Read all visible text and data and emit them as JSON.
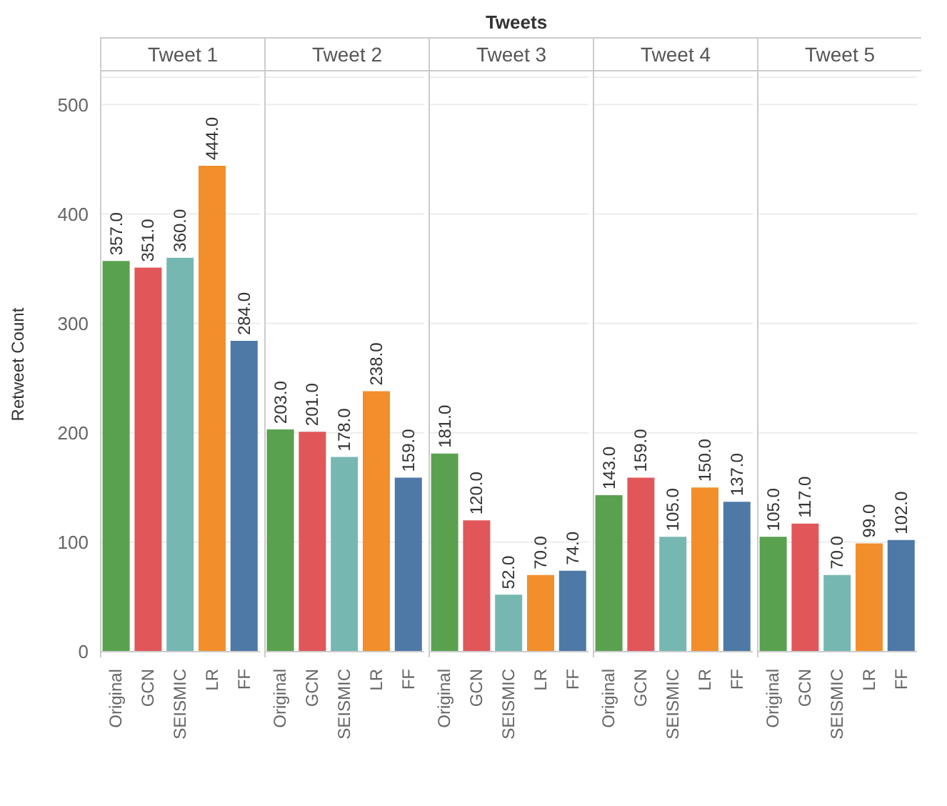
{
  "chart_data": [
    {
      "type": "bar",
      "title": "Tweet 1",
      "ylabel": "Retweet Count",
      "annotations": [
        "Tweets"
      ],
      "categories": [
        "Original",
        "GCN",
        "SEISMIC",
        "LR",
        "FF"
      ],
      "values": [
        357,
        351,
        360,
        444,
        284
      ],
      "value_labels": [
        "357.0",
        "351.0",
        "360.0",
        "444.0",
        "284.0"
      ],
      "colors": [
        "#59a14f",
        "#e15759",
        "#76b7b2",
        "#f28e2b",
        "#4e79a7"
      ],
      "ylim": [
        0,
        525
      ],
      "yticks": [
        0,
        100,
        200,
        300,
        400,
        500
      ],
      "grid": "y"
    },
    {
      "type": "bar",
      "title": "Tweet 2",
      "categories": [
        "Original",
        "GCN",
        "SEISMIC",
        "LR",
        "FF"
      ],
      "values": [
        203,
        201,
        178,
        238,
        159
      ],
      "value_labels": [
        "203.0",
        "201.0",
        "178.0",
        "238.0",
        "159.0"
      ],
      "colors": [
        "#59a14f",
        "#e15759",
        "#76b7b2",
        "#f28e2b",
        "#4e79a7"
      ],
      "ylim": [
        0,
        525
      ],
      "yticks": [
        0,
        100,
        200,
        300,
        400,
        500
      ],
      "grid": "y",
      "tick_labels": "x"
    },
    {
      "type": "bar",
      "title": "Tweet 3",
      "categories": [
        "Original",
        "GCN",
        "SEISMIC",
        "LR",
        "FF"
      ],
      "values": [
        181,
        120,
        52,
        70,
        74
      ],
      "value_labels": [
        "181.0",
        "120.0",
        "52.0",
        "70.0",
        "74.0"
      ],
      "colors": [
        "#59a14f",
        "#e15759",
        "#76b7b2",
        "#f28e2b",
        "#4e79a7"
      ],
      "ylim": [
        0,
        525
      ],
      "yticks": [
        0,
        100,
        200,
        300,
        400,
        500
      ],
      "grid": "y",
      "tick_labels": "x"
    },
    {
      "type": "bar",
      "title": "Tweet 4",
      "categories": [
        "Original",
        "GCN",
        "SEISMIC",
        "LR",
        "FF"
      ],
      "values": [
        143,
        159,
        105,
        150,
        137
      ],
      "value_labels": [
        "143.0",
        "159.0",
        "105.0",
        "150.0",
        "137.0"
      ],
      "colors": [
        "#59a14f",
        "#e15759",
        "#76b7b2",
        "#f28e2b",
        "#4e79a7"
      ],
      "ylim": [
        0,
        525
      ],
      "yticks": [
        0,
        100,
        200,
        300,
        400,
        500
      ],
      "grid": "y",
      "tick_labels": "x"
    },
    {
      "type": "bar",
      "title": "Tweet 5",
      "categories": [
        "Original",
        "GCN",
        "SEISMIC",
        "LR",
        "FF"
      ],
      "values": [
        105,
        117,
        70,
        99,
        102
      ],
      "value_labels": [
        "105.0",
        "117.0",
        "70.0",
        "99.0",
        "102.0"
      ],
      "colors": [
        "#59a14f",
        "#e15759",
        "#76b7b2",
        "#f28e2b",
        "#4e79a7"
      ],
      "ylim": [
        0,
        525
      ],
      "yticks": [
        0,
        100,
        200,
        300,
        400,
        500
      ],
      "grid": "y",
      "tick_labels": "x"
    }
  ]
}
